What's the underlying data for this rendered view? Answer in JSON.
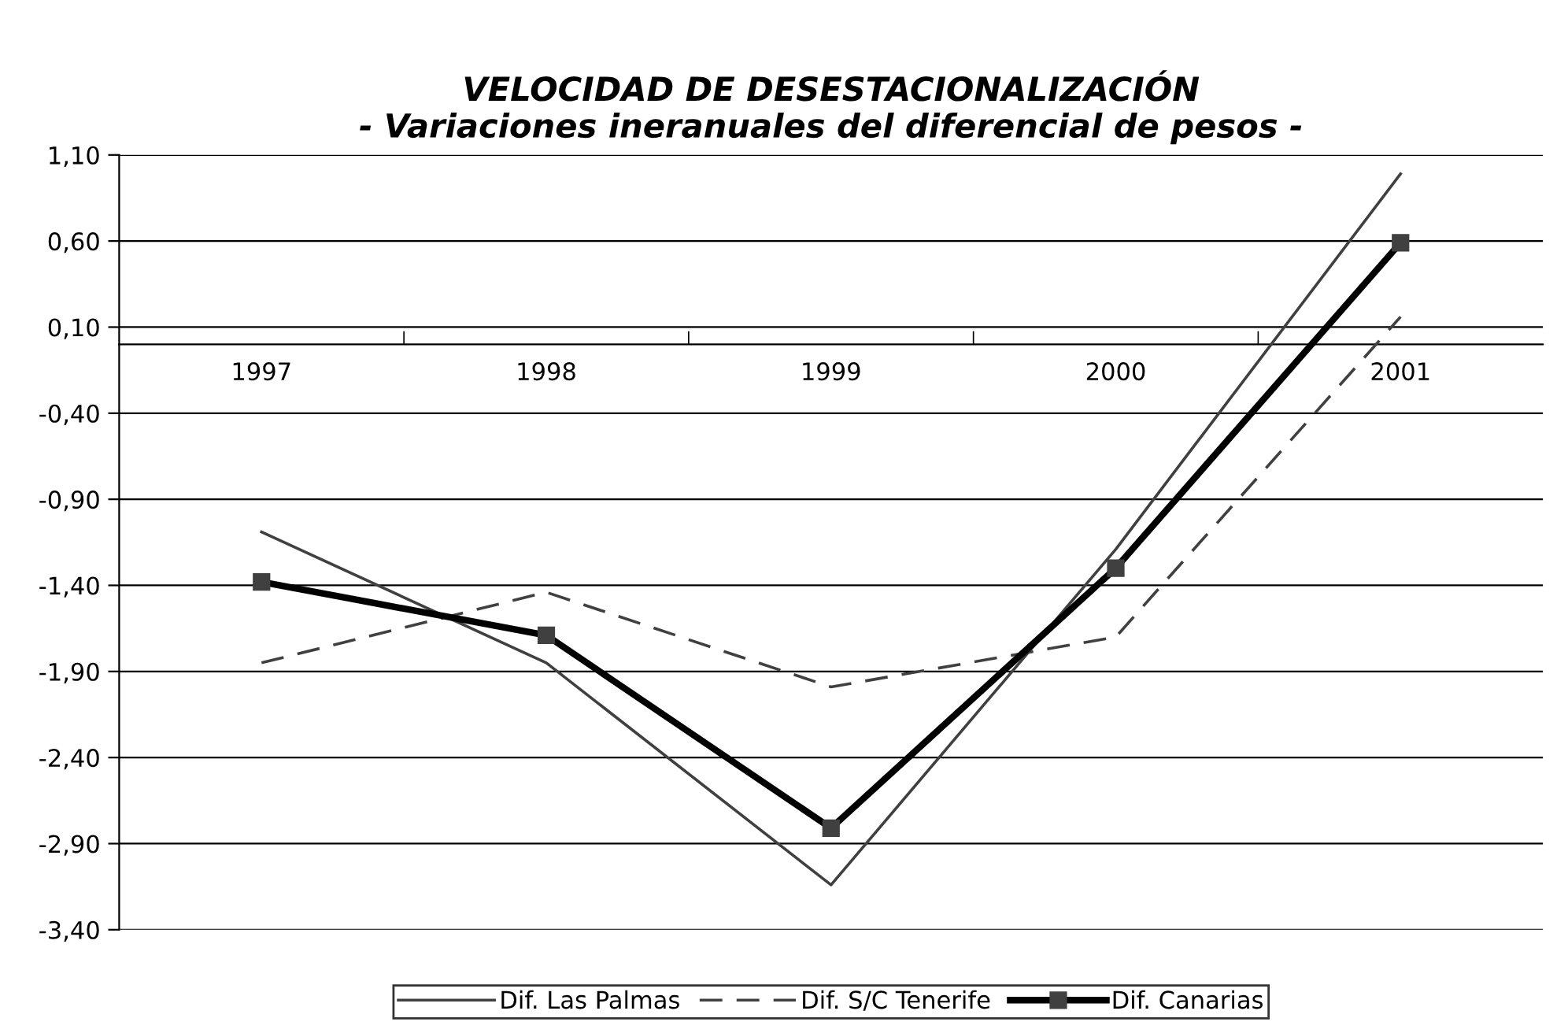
{
  "chart_data": {
    "type": "line",
    "title": "VELOCIDAD DE DESESTACIONALIZACIÓN\n- Variaciones ineranuales del diferencial de pesos -",
    "categories": [
      "1997",
      "1998",
      "1999",
      "2000",
      "2001"
    ],
    "series": [
      {
        "name": "Dif. Las Palmas",
        "color": "#404040",
        "line_style": "solid",
        "marker": "none",
        "values": [
          -1.09,
          -1.85,
          -3.14,
          -1.19,
          0.99
        ]
      },
      {
        "name": "Dif. S/C Tenerife",
        "color": "#404040",
        "line_style": "dashed",
        "marker": "none",
        "values": [
          -1.85,
          -1.44,
          -1.99,
          -1.7,
          0.16
        ]
      },
      {
        "name": "Dif. Canarias",
        "color": "#000000",
        "line_style": "solid",
        "marker": "square",
        "values": [
          -1.38,
          -1.69,
          -2.81,
          -1.3,
          0.59
        ]
      }
    ],
    "ylim": [
      -3.4,
      1.1
    ],
    "yticks": [
      {
        "value": -3.4,
        "label": "-3,40"
      },
      {
        "value": -2.9,
        "label": "-2,90"
      },
      {
        "value": -2.4,
        "label": "-2,40"
      },
      {
        "value": -1.9,
        "label": "-1,90"
      },
      {
        "value": -1.4,
        "label": "-1,40"
      },
      {
        "value": -0.9,
        "label": "-0,90"
      },
      {
        "value": -0.4,
        "label": "-0,40"
      },
      {
        "value": 0.1,
        "label": "0,10"
      },
      {
        "value": 0.6,
        "label": "0,60"
      },
      {
        "value": 1.1,
        "label": "1,10"
      }
    ],
    "grid": "y",
    "legend": "bottom"
  }
}
